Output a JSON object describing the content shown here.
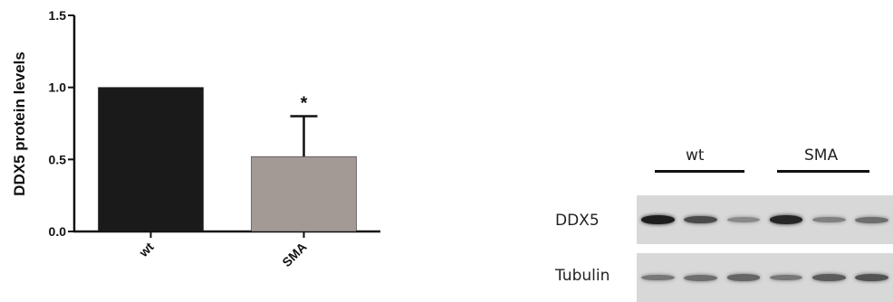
{
  "chart_data": {
    "type": "bar",
    "categories": [
      "wt",
      "SMA"
    ],
    "series": [
      {
        "values": [
          1.0,
          0.52
        ],
        "errors": [
          0,
          0.28
        ],
        "colors": [
          "#1a1a1a",
          "#a39a96"
        ]
      }
    ],
    "annotations": [
      {
        "category": "SMA",
        "text": "*"
      }
    ],
    "title": "",
    "xlabel": "",
    "ylabel": "DDX5 protein levels",
    "ylim": [
      0,
      1.5
    ],
    "yticks": [
      0.0,
      0.5,
      1.0,
      1.5
    ],
    "ytick_labels": [
      "0.0",
      "0.5",
      "1.0",
      "1.5"
    ],
    "grid": false
  },
  "blot": {
    "groups": [
      "wt",
      "SMA"
    ],
    "rows": [
      {
        "label": "DDX5",
        "intensities": [
          0.95,
          0.7,
          0.35,
          0.9,
          0.4,
          0.5
        ]
      },
      {
        "label": "Tubulin",
        "intensities": [
          0.45,
          0.5,
          0.55,
          0.45,
          0.6,
          0.65
        ]
      }
    ]
  }
}
